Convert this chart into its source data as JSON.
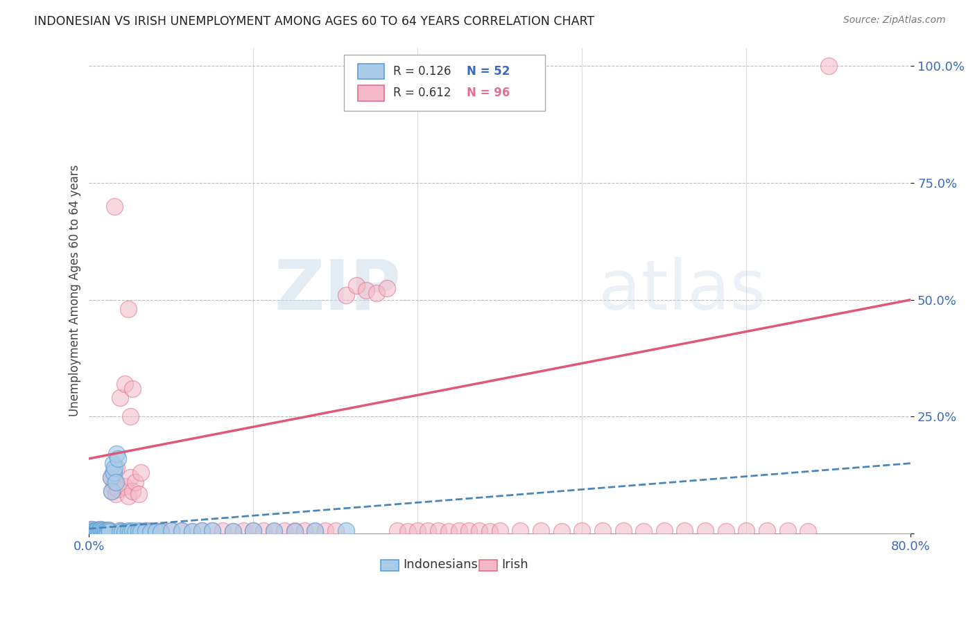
{
  "title": "INDONESIAN VS IRISH UNEMPLOYMENT AMONG AGES 60 TO 64 YEARS CORRELATION CHART",
  "source": "Source: ZipAtlas.com",
  "ylabel": "Unemployment Among Ages 60 to 64 years",
  "legend_label1": "Indonesians",
  "legend_label2": "Irish",
  "r1": 0.126,
  "n1": 52,
  "r2": 0.612,
  "n2": 96,
  "color_blue_fill": "#a8cce8",
  "color_blue_edge": "#5a9fd4",
  "color_blue_line": "#4a86b8",
  "color_pink_fill": "#f4b8c8",
  "color_pink_edge": "#e07090",
  "color_pink_line": "#e05878",
  "watermark_zip": "ZIP",
  "watermark_atlas": "atlas",
  "xlim": [
    0.0,
    0.8
  ],
  "ylim": [
    0.0,
    1.04
  ],
  "indonesian_x": [
    0.001,
    0.002,
    0.003,
    0.004,
    0.005,
    0.006,
    0.007,
    0.008,
    0.009,
    0.01,
    0.011,
    0.012,
    0.013,
    0.014,
    0.015,
    0.016,
    0.017,
    0.018,
    0.019,
    0.02,
    0.021,
    0.022,
    0.023,
    0.024,
    0.025,
    0.026,
    0.027,
    0.028,
    0.03,
    0.032,
    0.035,
    0.038,
    0.04,
    0.042,
    0.045,
    0.048,
    0.05,
    0.055,
    0.06,
    0.065,
    0.07,
    0.08,
    0.09,
    0.1,
    0.11,
    0.12,
    0.14,
    0.16,
    0.18,
    0.2,
    0.22,
    0.25
  ],
  "indonesian_y": [
    0.005,
    0.003,
    0.008,
    0.004,
    0.006,
    0.003,
    0.007,
    0.005,
    0.004,
    0.006,
    0.008,
    0.005,
    0.003,
    0.007,
    0.004,
    0.006,
    0.005,
    0.003,
    0.007,
    0.004,
    0.12,
    0.09,
    0.15,
    0.13,
    0.14,
    0.11,
    0.17,
    0.16,
    0.005,
    0.004,
    0.003,
    0.006,
    0.004,
    0.005,
    0.003,
    0.006,
    0.004,
    0.005,
    0.003,
    0.004,
    0.003,
    0.005,
    0.006,
    0.004,
    0.005,
    0.006,
    0.004,
    0.005,
    0.006,
    0.004,
    0.005,
    0.006
  ],
  "irish_x": [
    0.001,
    0.002,
    0.003,
    0.004,
    0.005,
    0.006,
    0.007,
    0.008,
    0.009,
    0.01,
    0.011,
    0.012,
    0.013,
    0.014,
    0.015,
    0.016,
    0.017,
    0.018,
    0.019,
    0.02,
    0.021,
    0.022,
    0.023,
    0.024,
    0.025,
    0.026,
    0.027,
    0.028,
    0.03,
    0.032,
    0.035,
    0.038,
    0.04,
    0.042,
    0.045,
    0.048,
    0.05,
    0.055,
    0.06,
    0.065,
    0.07,
    0.08,
    0.09,
    0.1,
    0.11,
    0.12,
    0.13,
    0.14,
    0.15,
    0.16,
    0.17,
    0.18,
    0.19,
    0.2,
    0.21,
    0.22,
    0.23,
    0.24,
    0.25,
    0.26,
    0.27,
    0.28,
    0.29,
    0.3,
    0.31,
    0.32,
    0.33,
    0.34,
    0.35,
    0.36,
    0.37,
    0.38,
    0.39,
    0.4,
    0.42,
    0.44,
    0.46,
    0.48,
    0.5,
    0.52,
    0.54,
    0.56,
    0.58,
    0.6,
    0.62,
    0.64,
    0.66,
    0.68,
    0.7,
    0.72,
    0.025,
    0.03,
    0.035,
    0.038,
    0.04,
    0.042
  ],
  "irish_y": [
    0.005,
    0.008,
    0.004,
    0.006,
    0.003,
    0.007,
    0.005,
    0.004,
    0.006,
    0.008,
    0.005,
    0.003,
    0.007,
    0.004,
    0.006,
    0.005,
    0.003,
    0.007,
    0.004,
    0.006,
    0.12,
    0.09,
    0.13,
    0.1,
    0.11,
    0.085,
    0.14,
    0.095,
    0.005,
    0.004,
    0.1,
    0.08,
    0.12,
    0.09,
    0.11,
    0.085,
    0.13,
    0.005,
    0.006,
    0.005,
    0.004,
    0.006,
    0.005,
    0.004,
    0.005,
    0.006,
    0.005,
    0.004,
    0.005,
    0.006,
    0.005,
    0.004,
    0.005,
    0.006,
    0.005,
    0.004,
    0.005,
    0.006,
    0.51,
    0.53,
    0.52,
    0.515,
    0.525,
    0.005,
    0.004,
    0.005,
    0.006,
    0.005,
    0.004,
    0.005,
    0.006,
    0.005,
    0.004,
    0.005,
    0.006,
    0.005,
    0.004,
    0.005,
    0.006,
    0.005,
    0.004,
    0.005,
    0.006,
    0.005,
    0.004,
    0.005,
    0.006,
    0.005,
    0.004,
    1.0,
    0.7,
    0.29,
    0.32,
    0.48,
    0.25,
    0.31
  ],
  "irish_line_x": [
    0.0,
    0.8
  ],
  "irish_line_y": [
    0.16,
    0.5
  ],
  "indo_line_x": [
    0.0,
    0.8
  ],
  "indo_line_y": [
    0.01,
    0.15
  ]
}
